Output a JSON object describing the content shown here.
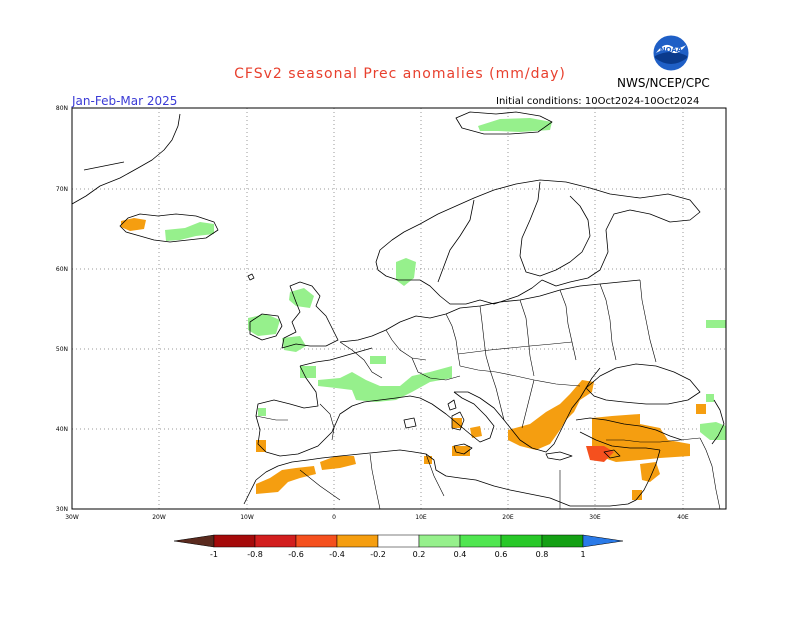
{
  "header": {
    "title": "CFSv2 seasonal Prec anomalies (mm/day)",
    "period": "Jan-Feb-Mar 2025",
    "initial_conditions": "Initial conditions: 10Oct2024-10Oct2024",
    "agency": "NWS/NCEP/CPC",
    "logo_text": "NOAA"
  },
  "map": {
    "lat_labels": [
      "80N",
      "70N",
      "60N",
      "50N",
      "40N",
      "30N"
    ],
    "lon_labels": [
      "30W",
      "20W",
      "10W",
      "0",
      "10E",
      "20E",
      "30E",
      "40E"
    ],
    "lat_range": [
      30,
      80
    ],
    "lon_range": [
      -30,
      45
    ],
    "grid": "dotted",
    "anomaly_regions": [
      {
        "name": "Svalbard",
        "class": "+0.2"
      },
      {
        "name": "Iceland east",
        "class": "+0.2"
      },
      {
        "name": "Iceland southwest",
        "class": "-0.2"
      },
      {
        "name": "Western Norway",
        "class": "+0.2"
      },
      {
        "name": "Ireland",
        "class": "+0.2"
      },
      {
        "name": "Scotland",
        "class": "+0.2"
      },
      {
        "name": "Wales / SW England",
        "class": "+0.2"
      },
      {
        "name": "France / Pyrenees",
        "class": "+0.2"
      },
      {
        "name": "Alps",
        "class": "+0.2"
      },
      {
        "name": "Caucasus",
        "class": "+0.2"
      },
      {
        "name": "Urals",
        "class": "+0.2"
      },
      {
        "name": "Morocco",
        "class": "-0.2"
      },
      {
        "name": "Northern Algeria",
        "class": "-0.2"
      },
      {
        "name": "Sardinia",
        "class": "-0.2"
      },
      {
        "name": "Sicily / Calabria",
        "class": "-0.2"
      },
      {
        "name": "Greece / Aegean",
        "class": "-0.2"
      },
      {
        "name": "Western Black Sea / Bulgaria",
        "class": "-0.2"
      },
      {
        "name": "Southern Turkey",
        "class": "-0.2"
      },
      {
        "name": "Eastern Mediterranean",
        "class": "-0.4"
      },
      {
        "name": "Levant",
        "class": "-0.2"
      }
    ]
  },
  "colorbar": {
    "labels": [
      "-1",
      "-0.8",
      "-0.6",
      "-0.4",
      "-0.2",
      "0.2",
      "0.4",
      "0.6",
      "0.8",
      "1"
    ],
    "colors": [
      "#5a2a1e",
      "#a50a0a",
      "#d21e1e",
      "#f5501e",
      "#f59e10",
      "#ffffff",
      "#96f08c",
      "#50e650",
      "#28c828",
      "#14a014",
      "#2a7ae8"
    ]
  }
}
